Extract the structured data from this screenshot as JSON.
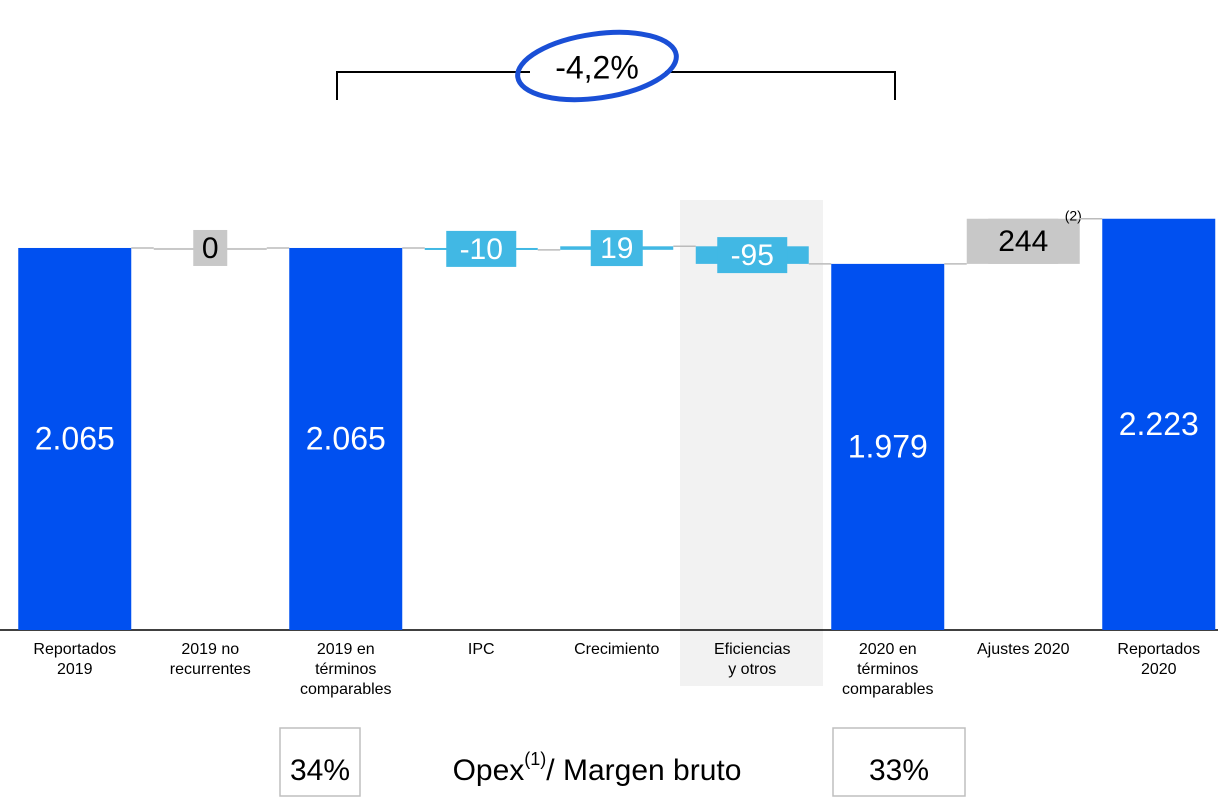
{
  "chart_data": {
    "type": "waterfall",
    "categories": [
      "Reportados\n2019",
      "2019 no\nrecurrentes",
      "2019 en\ntérminos\ncomparables",
      "IPC",
      "Crecimiento",
      "Eficiencias\ny otros",
      "2020 en\ntérminos\ncomparables",
      "Ajustes 2020",
      "Reportados\n2020"
    ],
    "values": [
      2065,
      0,
      2065,
      -10,
      19,
      -95,
      1979,
      244,
      2223
    ],
    "value_labels": [
      "2.065",
      "0",
      "2.065",
      "-10",
      "19",
      "-95",
      "1.979",
      "244",
      "2.223"
    ],
    "measure": [
      "total",
      "relative",
      "total",
      "relative",
      "relative",
      "relative",
      "total",
      "relative",
      "total"
    ],
    "colors": [
      "#0050f0",
      "#c8c8c8",
      "#0050f0",
      "#41b8e4",
      "#41b8e4",
      "#41b8e4",
      "#0050f0",
      "#c8c8c8",
      "#0050f0"
    ],
    "label_colors": [
      "#ffffff",
      "#000000",
      "#ffffff",
      "#ffffff",
      "#ffffff",
      "#ffffff",
      "#ffffff",
      "#000000",
      "#ffffff"
    ],
    "ylim": [
      0,
      3400
    ],
    "change_annotation": "-4,2%",
    "footnote_mark": "(2)",
    "ratio_2019": "34%",
    "ratio_label": "Opex",
    "ratio_label_sup": "(1)",
    "ratio_label_rest": "/ Margen bruto",
    "ratio_2020": "33%"
  }
}
